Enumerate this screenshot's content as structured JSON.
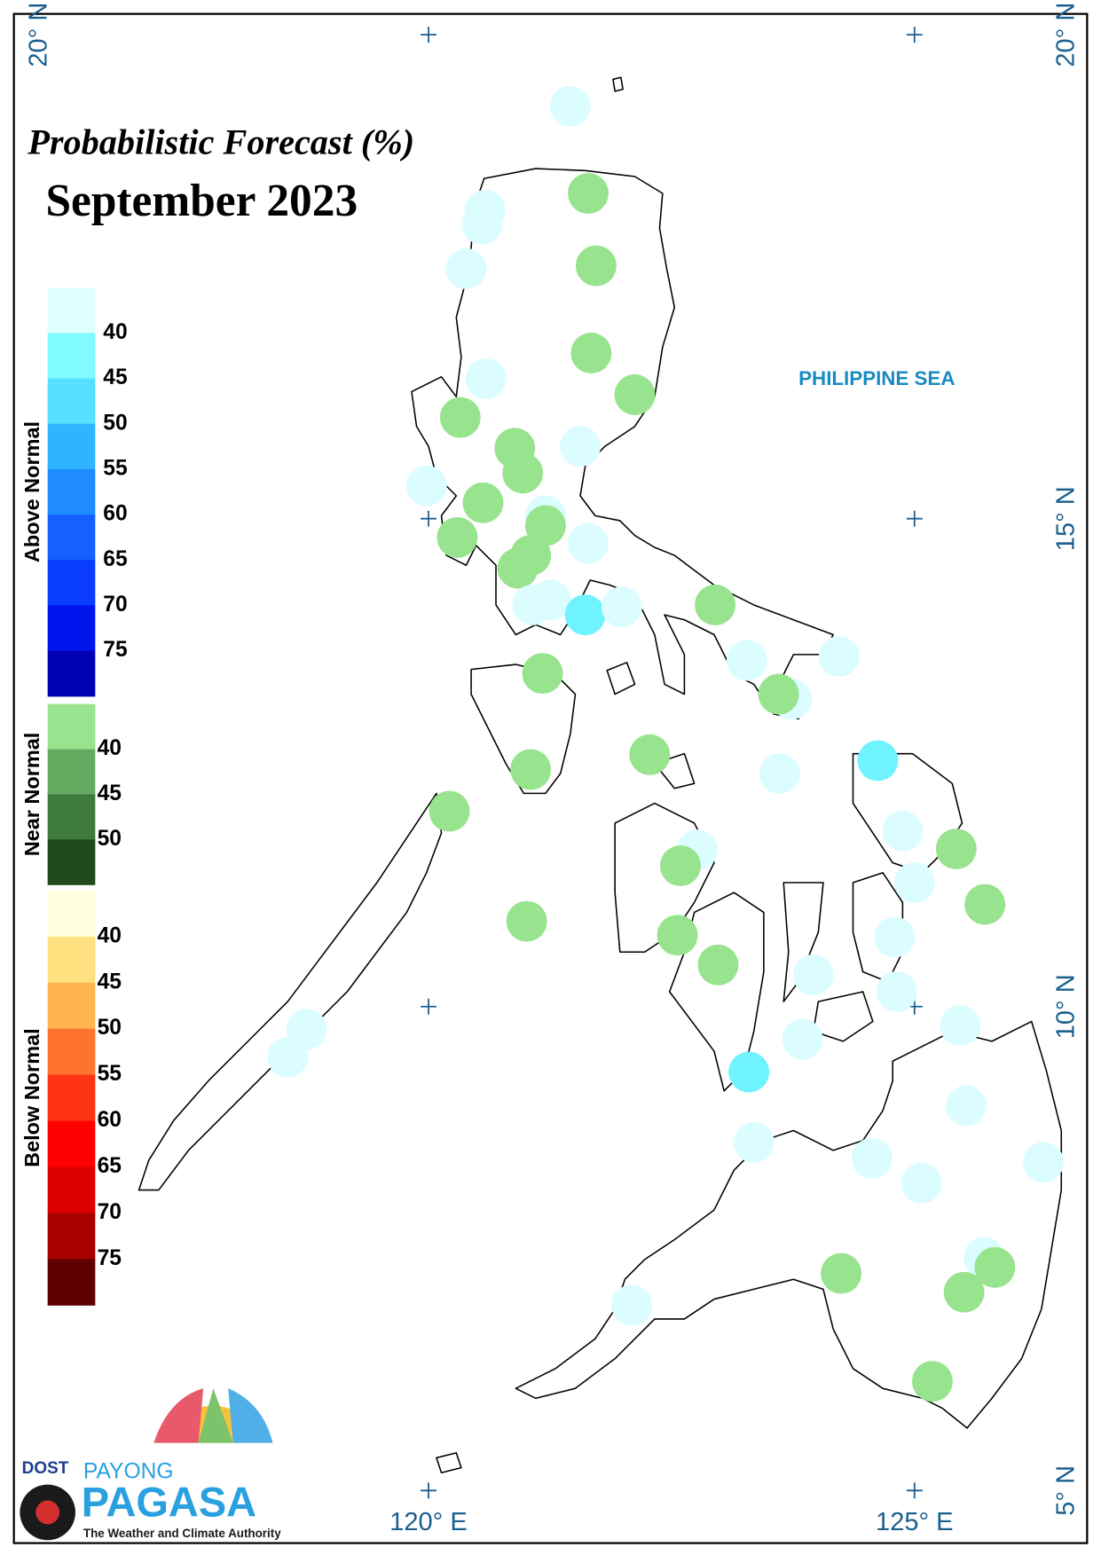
{
  "map": {
    "title": "Probabilistic Forecast (%)",
    "subtitle": "September 2023",
    "sea_label": "PHILIPPINE SEA",
    "lat_labels": [
      "20° N",
      "15° N",
      "10° N",
      "5° N"
    ],
    "lon_labels": [
      "120° E",
      "125° E"
    ],
    "legend": [
      {
        "name": "Above Normal",
        "colors": [
          "#e0ffff",
          "#80fbff",
          "#55e0ff",
          "#2fb4ff",
          "#1e8cff",
          "#1660ff",
          "#0a3cff",
          "#0014ee",
          "#0000b4"
        ],
        "ticks": [
          40,
          45,
          50,
          55,
          60,
          65,
          70,
          75
        ]
      },
      {
        "name": "Near Normal",
        "colors": [
          "#98e38d",
          "#66aa62",
          "#3f7a3d",
          "#1f4a1e"
        ],
        "ticks": [
          40,
          45,
          50
        ]
      },
      {
        "name": "Below Normal",
        "colors": [
          "#ffffe0",
          "#ffe180",
          "#ffb450",
          "#ff7330",
          "#ff3414",
          "#ff0000",
          "#dc0000",
          "#a80000",
          "#600000"
        ],
        "ticks": [
          40,
          45,
          50,
          55,
          60,
          65,
          70,
          75
        ]
      }
    ],
    "logo": {
      "agency": "DOST",
      "brand_top": "PAYONG",
      "brand": "PAGASA",
      "tagline": "The Weather and Climate Authority"
    }
  }
}
